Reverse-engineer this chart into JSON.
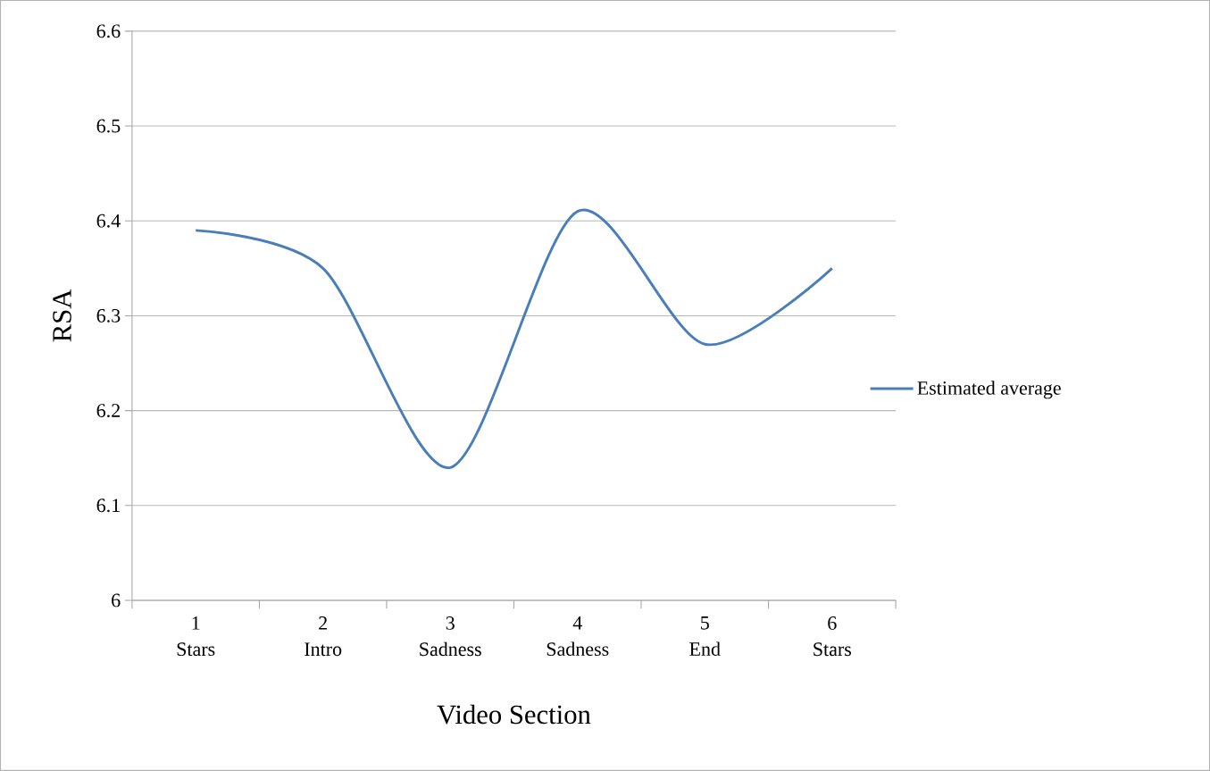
{
  "chart_data": {
    "type": "line",
    "xlabel": "Video Section",
    "ylabel": "RSA",
    "categories": [
      "1 Stars",
      "2 Intro",
      "3 Sadness",
      "4 Sadness",
      "5 End",
      "6 Stars"
    ],
    "series": [
      {
        "name": "Estimated average",
        "color": "#4a7ebb",
        "values": [
          6.39,
          6.35,
          6.14,
          6.41,
          6.27,
          6.35
        ]
      }
    ],
    "ylim": [
      6,
      6.6
    ],
    "yticks": [
      6,
      6.1,
      6.2,
      6.3,
      6.4,
      6.5,
      6.6
    ],
    "grid": "y",
    "legend": "right"
  }
}
